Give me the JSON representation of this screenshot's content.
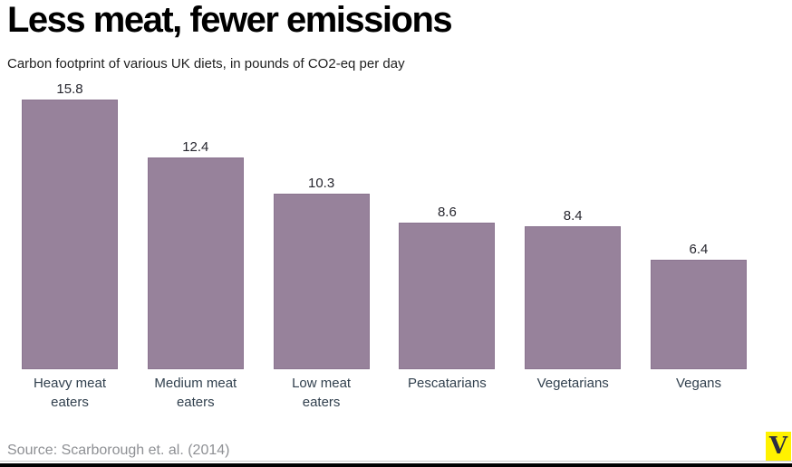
{
  "header": {
    "title": "Less meat, fewer emissions",
    "subtitle": "Carbon footprint of various UK diets, in pounds of CO2-eq per day"
  },
  "chart_data": {
    "type": "bar",
    "title": "Less meat, fewer emissions",
    "subtitle": "Carbon footprint of various UK diets, in pounds of CO2-eq per day",
    "categories": [
      "Heavy meat eaters",
      "Medium meat eaters",
      "Low meat eaters",
      "Pescatarians",
      "Vegetarians",
      "Vegans"
    ],
    "values": [
      15.8,
      12.4,
      10.3,
      8.6,
      8.4,
      6.4
    ],
    "xlabel": "",
    "ylabel": "pounds of CO2-eq per day",
    "ylim": [
      0,
      15.8
    ],
    "grid": false,
    "legend": false,
    "value_labels_position": "above bars",
    "bar_color": "#97829B",
    "bar_border_color": "#8B7490",
    "value_label_color": "#26262E",
    "category_label_color": "#31404E"
  },
  "footer": {
    "source": "Source: Scarborough et. al. (2014)",
    "logo_letter": "V",
    "logo_bg": "#FFF200",
    "logo_color": "#2B2D42"
  }
}
